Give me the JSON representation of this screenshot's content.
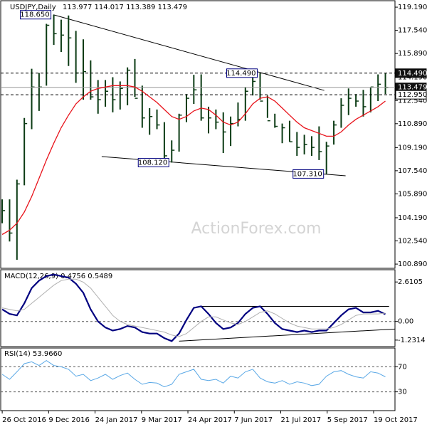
{
  "chart_data": [
    {
      "type": "ohlc",
      "title": "USDJPY,Daily",
      "subtitle": "113.977 114.017 113.389 113.479",
      "watermark": "ActionForex.com",
      "color": "#0b3b14",
      "high": [
        105.5,
        105.5,
        106.9,
        111.3,
        114.8,
        114.5,
        118.0,
        118.65,
        118.3,
        118.6,
        117.5,
        116.9,
        115.4,
        114.0,
        114.0,
        114.2,
        113.9,
        114.9,
        115.5,
        113.6,
        112.0,
        111.9,
        111.0,
        109.7,
        111.6,
        113.0,
        114.37,
        114.4,
        112.1,
        111.9,
        111.7,
        111.4,
        112.4,
        113.5,
        114.3,
        114.49,
        112.9,
        111.6,
        110.9,
        111.1,
        110.3,
        110.1,
        110.0,
        110.7,
        109.6,
        111.1,
        112.7,
        113.4,
        113.0,
        113.3,
        113.5,
        114.4,
        114.49
      ],
      "low": [
        103.8,
        102.5,
        101.2,
        106.5,
        110.5,
        111.8,
        113.6,
        116.5,
        116.0,
        115.0,
        113.8,
        112.6,
        112.6,
        111.6,
        112.1,
        111.7,
        111.9,
        112.2,
        112.8,
        110.6,
        110.1,
        110.5,
        108.3,
        108.12,
        108.9,
        111.0,
        112.3,
        111.1,
        110.2,
        110.5,
        108.8,
        109.3,
        110.7,
        111.1,
        112.9,
        112.6,
        111.3,
        110.6,
        109.5,
        109.6,
        108.6,
        108.7,
        108.6,
        108.3,
        107.31,
        109.4,
        110.6,
        111.5,
        112.1,
        111.4,
        111.7,
        112.5,
        113.0
      ],
      "close": [
        104.7,
        103.1,
        106.6,
        110.9,
        113.5,
        113.5,
        117.9,
        117.3,
        117.2,
        117.0,
        114.5,
        114.6,
        112.8,
        112.6,
        113.2,
        112.6,
        113.4,
        114.7,
        112.7,
        111.3,
        111.4,
        110.8,
        108.6,
        109.0,
        111.5,
        112.7,
        113.3,
        111.3,
        111.3,
        111.0,
        110.3,
        110.9,
        111.2,
        113.2,
        113.9,
        112.5,
        111.1,
        110.7,
        110.6,
        109.6,
        109.2,
        109.4,
        109.2,
        108.9,
        109.3,
        110.8,
        112.2,
        112.7,
        112.5,
        112.1,
        113.5,
        113.7,
        113.479
      ],
      "series": [
        {
          "color": "#e8141c",
          "values": [
            103.0,
            103.3,
            103.8,
            104.6,
            105.7,
            107.0,
            108.3,
            109.5,
            110.6,
            111.5,
            112.3,
            112.8,
            113.2,
            113.4,
            113.5,
            113.6,
            113.6,
            113.6,
            113.5,
            113.2,
            112.8,
            112.4,
            111.9,
            111.4,
            111.2,
            111.4,
            111.8,
            112.0,
            111.9,
            111.5,
            111.0,
            110.8,
            111.0,
            111.6,
            112.3,
            112.7,
            112.8,
            112.5,
            112.0,
            111.5,
            111.0,
            110.6,
            110.4,
            110.2,
            110.0,
            110.0,
            110.3,
            110.8,
            111.2,
            111.5,
            111.8,
            112.1,
            112.5
          ]
        }
      ],
      "ylim": [
        100.59,
        119.7
      ],
      "yticks": [
        {
          "value": 119.19,
          "label": "119.190"
        },
        {
          "value": 117.54,
          "label": "117.540"
        },
        {
          "value": 115.89,
          "label": "115.890"
        },
        {
          "value": 114.19,
          "label": "114.190"
        },
        {
          "value": 112.54,
          "label": "112.540"
        },
        {
          "value": 110.89,
          "label": "110.890"
        },
        {
          "value": 109.19,
          "label": "109.190"
        },
        {
          "value": 107.54,
          "label": "107.540"
        },
        {
          "value": 105.89,
          "label": "105.890"
        },
        {
          "value": 104.19,
          "label": "104.190"
        },
        {
          "value": 102.54,
          "label": "102.540"
        },
        {
          "value": 100.89,
          "label": "100.890"
        }
      ],
      "hlines": [
        {
          "value": 114.49,
          "label": "114.490",
          "style": "dashed",
          "box": "dark"
        },
        {
          "value": 113.479,
          "label": "113.479",
          "style": "solid",
          "box": "dark"
        },
        {
          "value": 112.95,
          "label": "112.950",
          "style": "dashed",
          "box": "light"
        }
      ],
      "trendlines": [
        {
          "x": [
            6.95,
            43.7
          ],
          "y": [
            118.65,
            113.26
          ]
        },
        {
          "x": [
            13.5,
            46.6
          ],
          "y": [
            108.55,
            107.18
          ]
        }
      ],
      "annotations": [
        {
          "x": 7,
          "value": 118.65,
          "label": "118.650"
        },
        {
          "x": 35,
          "value": 114.49,
          "label": "114.490"
        },
        {
          "x": 23,
          "value": 108.12,
          "label": "108.120"
        },
        {
          "x": 44,
          "value": 107.31,
          "label": "107.310"
        }
      ]
    },
    {
      "type": "line",
      "title": "MACD(12,26,9) 0.4756 0.5489",
      "series": [
        {
          "color": "#000080",
          "width": 2.2,
          "values": [
            0.8,
            0.5,
            0.4,
            1.2,
            2.2,
            2.7,
            3.0,
            3.1,
            3.0,
            2.9,
            2.5,
            1.9,
            0.8,
            0.0,
            -0.4,
            -0.6,
            -0.5,
            -0.3,
            -0.4,
            -0.7,
            -0.8,
            -0.8,
            -1.1,
            -1.3,
            -0.8,
            0.1,
            0.9,
            1.0,
            0.5,
            -0.1,
            -0.5,
            -0.4,
            -0.1,
            0.5,
            0.9,
            1.0,
            0.5,
            -0.1,
            -0.5,
            -0.6,
            -0.7,
            -0.6,
            -0.7,
            -0.6,
            -0.6,
            -0.1,
            0.4,
            0.8,
            0.9,
            0.6,
            0.6,
            0.7,
            0.48
          ]
        },
        {
          "color": "#b0b0b0",
          "width": 1,
          "values": [
            0.9,
            0.8,
            0.7,
            0.8,
            1.2,
            1.6,
            2.0,
            2.4,
            2.7,
            2.8,
            2.8,
            2.6,
            2.2,
            1.6,
            1.0,
            0.4,
            0.0,
            -0.2,
            -0.3,
            -0.4,
            -0.5,
            -0.6,
            -0.7,
            -0.9,
            -1.0,
            -0.8,
            -0.4,
            0.0,
            0.3,
            0.3,
            0.1,
            -0.1,
            -0.2,
            0.0,
            0.3,
            0.6,
            0.7,
            0.5,
            0.2,
            -0.1,
            -0.3,
            -0.4,
            -0.5,
            -0.5,
            -0.5,
            -0.4,
            -0.2,
            0.1,
            0.4,
            0.5,
            0.5,
            0.5,
            0.55
          ]
        }
      ],
      "ylim": [
        -1.66,
        3.42
      ],
      "yticks": [
        2.6105,
        {
          "value": 0,
          "label": "0.00"
        },
        -1.2314
      ],
      "ref_lines": [
        0
      ],
      "trendlines": [
        {
          "x": [
            27,
            52.5
          ],
          "y": [
            1.0,
            1.0
          ]
        },
        {
          "x": [
            24,
            53.3
          ],
          "y": [
            -1.3,
            -0.5
          ]
        }
      ]
    },
    {
      "type": "line",
      "title": "RSI(14) 53.9660",
      "series": [
        {
          "color": "#5aa8e6",
          "width": 1,
          "values": [
            58,
            50,
            62,
            75,
            78,
            72,
            80,
            72,
            70,
            66,
            55,
            58,
            48,
            52,
            58,
            50,
            56,
            60,
            50,
            42,
            45,
            44,
            38,
            42,
            58,
            62,
            66,
            50,
            48,
            50,
            44,
            55,
            52,
            62,
            66,
            52,
            46,
            44,
            48,
            42,
            46,
            44,
            40,
            42,
            55,
            62,
            64,
            58,
            54,
            52,
            62,
            60,
            54
          ]
        }
      ],
      "ylim": [
        0,
        100
      ],
      "yticks": [
        70,
        30
      ],
      "ref_lines": [
        70,
        30
      ],
      "xlim": [
        -0.3,
        53.3
      ],
      "xticks": [
        {
          "value": 0,
          "label": "26 Oct 2016"
        },
        {
          "value": 6.3,
          "label": "9 Dec 2016"
        },
        {
          "value": 12.6,
          "label": "24 Jan 2017"
        },
        {
          "value": 18.9,
          "label": "9 Mar 2017"
        },
        {
          "value": 25.2,
          "label": "24 Apr 2017"
        },
        {
          "value": 31.5,
          "label": "7 Jun 2017"
        },
        {
          "value": 37.8,
          "label": "21 Jul 2017"
        },
        {
          "value": 44.1,
          "label": "5 Sep 2017"
        },
        {
          "value": 50.4,
          "label": "19 Oct 2017"
        }
      ]
    }
  ]
}
